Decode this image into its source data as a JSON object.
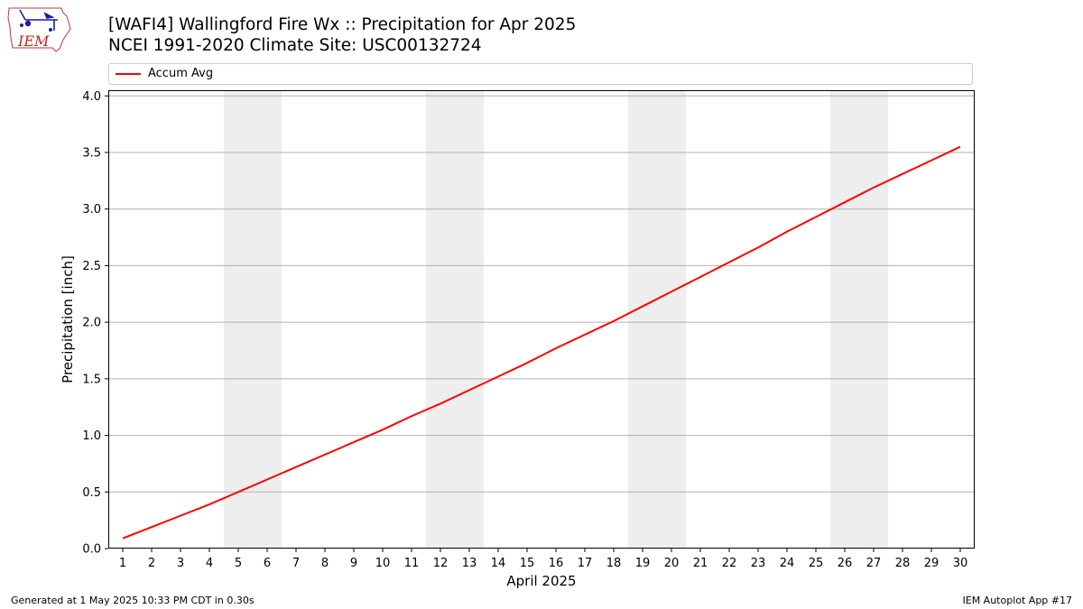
{
  "header": {
    "title": "[WAFI4] Wallingford Fire Wx :: Precipitation for Apr 2025",
    "subtitle": "NCEI 1991-2020 Climate Site: USC00132724",
    "logo_text": "IEM"
  },
  "footer": {
    "generated": "Generated at 1 May 2025 10:33 PM CDT in 0.30s",
    "app": "IEM Autoplot App #17"
  },
  "chart_data": {
    "type": "line",
    "xlabel": "April 2025",
    "ylabel": "Precipitation [inch]",
    "x": [
      1,
      2,
      3,
      4,
      5,
      6,
      7,
      8,
      9,
      10,
      11,
      12,
      13,
      14,
      15,
      16,
      17,
      18,
      19,
      20,
      21,
      22,
      23,
      24,
      25,
      26,
      27,
      28,
      29,
      30
    ],
    "xlim": [
      0.5,
      30.5
    ],
    "ylim": [
      0,
      4.05
    ],
    "yticks": [
      0.0,
      0.5,
      1.0,
      1.5,
      2.0,
      2.5,
      3.0,
      3.5,
      4.0
    ],
    "ytick_labels": [
      "0.0",
      "0.5",
      "1.0",
      "1.5",
      "2.0",
      "2.5",
      "3.0",
      "3.5",
      "4.0"
    ],
    "grid": "horizontal",
    "legend_placement": "top",
    "weekend_bands": [
      [
        4.5,
        6.5
      ],
      [
        11.5,
        13.5
      ],
      [
        18.5,
        20.5
      ],
      [
        25.5,
        27.5
      ]
    ],
    "colors": {
      "line": "#ff0000",
      "band": "#eeeeee",
      "grid": "#b0b0b0"
    },
    "series": [
      {
        "name": "Accum Avg",
        "values": [
          0.09,
          0.19,
          0.29,
          0.39,
          0.5,
          0.61,
          0.72,
          0.83,
          0.94,
          1.05,
          1.17,
          1.28,
          1.4,
          1.52,
          1.64,
          1.77,
          1.89,
          2.01,
          2.14,
          2.27,
          2.4,
          2.53,
          2.66,
          2.8,
          2.93,
          3.06,
          3.19,
          3.31,
          3.43,
          3.55
        ]
      }
    ]
  }
}
